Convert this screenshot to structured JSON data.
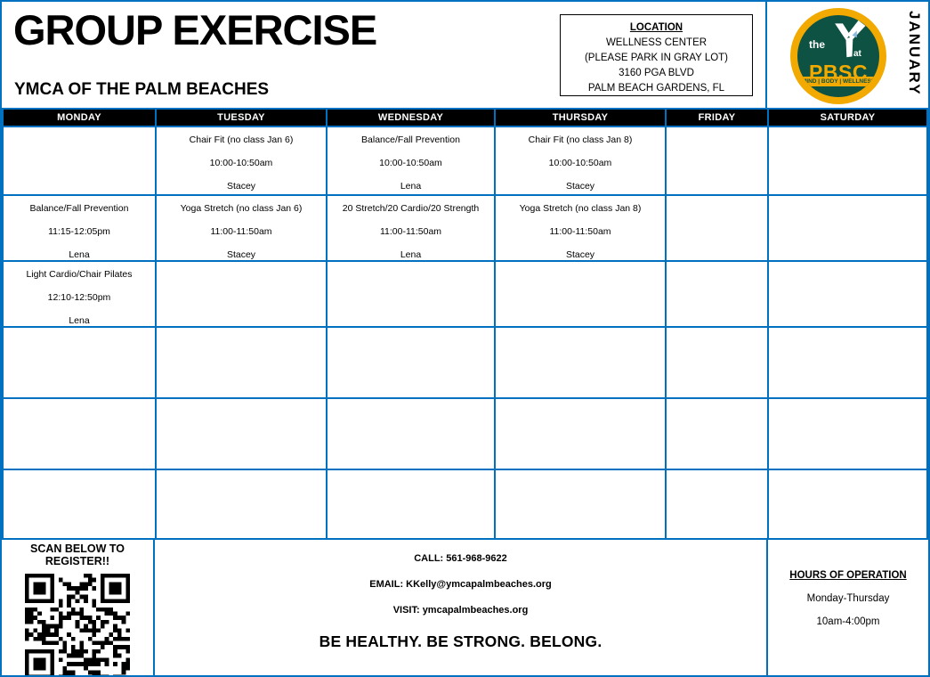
{
  "header": {
    "title": "GROUP EXERCISE",
    "subtitle": "YMCA OF THE PALM BEACHES",
    "month": "JANUARY",
    "location": {
      "heading": "LOCATION",
      "lines": [
        "WELLNESS CENTER",
        "(PLEASE PARK IN GRAY LOT)",
        "3160 PGA BLVD",
        "PALM BEACH GARDENS, FL"
      ]
    },
    "logo": {
      "pre": "the",
      "mid": "at",
      "org": "PBSC",
      "tagline": "MIND | BODY | WELLNESS"
    }
  },
  "schedule": {
    "days": [
      "MONDAY",
      "TUESDAY",
      "WEDNESDAY",
      "THURSDAY",
      "FRIDAY",
      "SATURDAY"
    ],
    "rows": [
      [
        null,
        {
          "name": "Chair Fit (no class Jan 6)",
          "time": "10:00-10:50am",
          "instructor": "Stacey"
        },
        {
          "name": "Balance/Fall Prevention",
          "time": "10:00-10:50am",
          "instructor": "Lena"
        },
        {
          "name": "Chair Fit (no class Jan 8)",
          "time": "10:00-10:50am",
          "instructor": "Stacey"
        },
        null,
        null
      ],
      [
        {
          "name": "Balance/Fall Prevention",
          "time": "11:15-12:05pm",
          "instructor": "Lena"
        },
        {
          "name": "Yoga Stretch (no class Jan 6)",
          "time": "11:00-11:50am",
          "instructor": "Stacey"
        },
        {
          "name": "20 Stretch/20 Cardio/20 Strength",
          "time": "11:00-11:50am",
          "instructor": "Lena"
        },
        {
          "name": "Yoga Stretch (no class Jan 8)",
          "time": "11:00-11:50am",
          "instructor": "Stacey"
        },
        null,
        null
      ],
      [
        {
          "name": "Light Cardio/Chair Pilates",
          "time": "12:10-12:50pm",
          "instructor": "Lena"
        },
        null,
        null,
        null,
        null,
        null
      ],
      [
        null,
        null,
        null,
        null,
        null,
        null
      ],
      [
        null,
        null,
        null,
        null,
        null,
        null
      ],
      [
        null,
        null,
        null,
        null,
        null,
        null
      ]
    ]
  },
  "footer": {
    "scan_label": "SCAN BELOW TO REGISTER!!",
    "call": "CALL: 561-968-9622",
    "email": "EMAIL: KKelly@ymcapalmbeaches.org",
    "visit": "VISIT: ymcapalmbeaches.org",
    "motto": "BE HEALTHY. BE STRONG. BELONG.",
    "hours": {
      "heading": "HOURS OF OPERATION",
      "days": "Monday-Thursday",
      "time": "10am-4:00pm"
    }
  },
  "colors": {
    "grid_blue": "#0070C0",
    "header_bg": "#000000",
    "header_text": "#FFFFFF",
    "logo_gold": "#F2A900",
    "logo_green": "#0E5244"
  }
}
